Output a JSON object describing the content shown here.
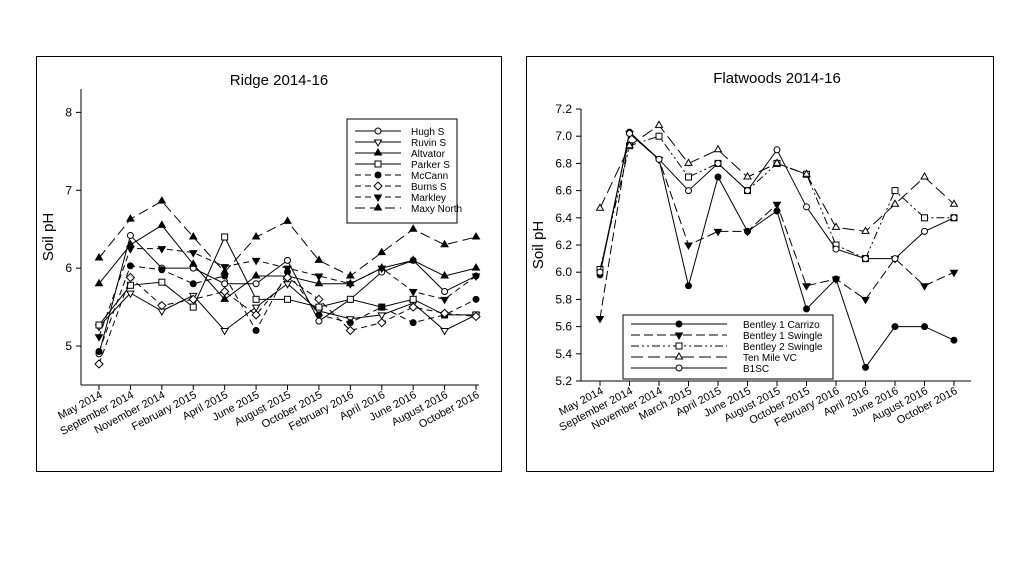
{
  "chart_data": [
    {
      "type": "line",
      "title": "Ridge 2014-16",
      "xlabel": "",
      "ylabel": "Soil pH",
      "ylim": [
        4.5,
        8.3
      ],
      "yticks": [
        5,
        6,
        7,
        8
      ],
      "grid": false,
      "legend_position": "top-right",
      "categories": [
        "May 2014",
        "September 2014",
        "November 2014",
        "February 2015",
        "April 2015",
        "June 2015",
        "August 2015",
        "October 2015",
        "February 2016",
        "April 2016",
        "June 2016",
        "August 2016",
        "October 2016"
      ],
      "series": [
        {
          "name": "Hugh S",
          "marker": "circle-open",
          "dash": "",
          "values": [
            4.9,
            6.42,
            6.0,
            6.0,
            5.8,
            5.8,
            6.1,
            5.32,
            5.6,
            5.95,
            6.1,
            5.7,
            5.9
          ]
        },
        {
          "name": "Ruvin S",
          "marker": "triangle-down-open",
          "dash": "",
          "values": [
            5.25,
            5.68,
            5.45,
            5.65,
            5.2,
            5.5,
            5.8,
            5.45,
            5.35,
            5.4,
            5.55,
            5.2,
            5.4
          ]
        },
        {
          "name": "Altvator",
          "marker": "triangle-up-filled",
          "dash": "",
          "values": [
            5.8,
            6.3,
            6.55,
            6.05,
            5.6,
            5.9,
            5.9,
            5.8,
            5.8,
            6.0,
            6.1,
            5.9,
            6.0
          ]
        },
        {
          "name": "Parker S",
          "marker": "square-open",
          "dash": "",
          "values": [
            5.27,
            5.78,
            5.82,
            5.5,
            6.4,
            5.6,
            5.6,
            5.5,
            5.6,
            5.5,
            5.6,
            5.4,
            5.4
          ]
        },
        {
          "name": "McCann",
          "marker": "circle-filled",
          "dash": "6,4",
          "values": [
            4.93,
            6.03,
            5.98,
            5.8,
            5.9,
            5.2,
            5.95,
            5.4,
            5.3,
            5.5,
            5.3,
            5.4,
            5.6
          ]
        },
        {
          "name": "Burns S",
          "marker": "diamond-open",
          "dash": "6,4",
          "values": [
            4.77,
            5.88,
            5.52,
            5.6,
            5.7,
            5.4,
            5.88,
            5.6,
            5.2,
            5.3,
            5.5,
            5.42,
            5.38
          ]
        },
        {
          "name": "Markley",
          "marker": "triangle-down-filled",
          "dash": "6,4",
          "values": [
            5.12,
            6.25,
            6.25,
            6.2,
            6.02,
            6.1,
            6.0,
            5.9,
            5.8,
            6.0,
            5.7,
            5.6,
            5.9
          ]
        },
        {
          "name": "Maxy North",
          "marker": "triangle-up-filled",
          "dash": "10,5",
          "values": [
            6.13,
            6.63,
            6.86,
            6.4,
            5.95,
            6.4,
            6.6,
            6.1,
            5.9,
            6.2,
            6.5,
            6.3,
            6.4
          ]
        }
      ]
    },
    {
      "type": "line",
      "title": "Flatwoods 2014-16",
      "xlabel": "",
      "ylabel": "Soil pH",
      "ylim": [
        5.2,
        7.2
      ],
      "yticks": [
        5.2,
        5.4,
        5.6,
        5.8,
        6.0,
        6.2,
        6.4,
        6.6,
        6.8,
        7.0,
        7.2
      ],
      "ytick_labels": [
        "5.2",
        "5.4",
        "5.6",
        "5.8",
        "6.0",
        "6.2",
        "6.4",
        "6.6",
        "6.8",
        "7.0",
        "7.2"
      ],
      "grid": false,
      "legend_position": "bottom-left",
      "categories": [
        "May 2014",
        "September 2014",
        "November 2014",
        "March 2015",
        "April 2015",
        "June 2015",
        "August 2015",
        "October 2015",
        "February 2016",
        "April 2016",
        "June 2016",
        "August 2016",
        "October 2016"
      ],
      "series": [
        {
          "name": "Bentley 1 Carrizo",
          "marker": "circle-filled",
          "dash": "",
          "values": [
            5.98,
            7.03,
            6.83,
            5.9,
            6.7,
            6.3,
            6.45,
            5.73,
            5.95,
            5.3,
            5.6,
            5.6,
            5.5
          ]
        },
        {
          "name": "Bentley 1 Swingle",
          "marker": "triangle-down-filled",
          "dash": "9,4",
          "values": [
            5.66,
            7.02,
            6.83,
            6.2,
            6.3,
            6.3,
            6.5,
            5.9,
            5.95,
            5.8,
            6.1,
            5.9,
            6.0
          ]
        },
        {
          "name": "Bentley 2 Swingle",
          "marker": "square-open",
          "dash": "8,3,2,3,2,3",
          "values": [
            6.02,
            6.93,
            7.0,
            6.7,
            6.8,
            6.6,
            6.8,
            6.72,
            6.2,
            6.1,
            6.6,
            6.4,
            6.4
          ]
        },
        {
          "name": "Ten Mile VC",
          "marker": "triangle-up-open",
          "dash": "12,5",
          "values": [
            6.47,
            6.93,
            7.08,
            6.8,
            6.9,
            6.7,
            6.8,
            6.72,
            6.33,
            6.3,
            6.5,
            6.7,
            6.5
          ]
        },
        {
          "name": "B1SC",
          "marker": "circle-open",
          "dash": "",
          "values": [
            6.0,
            7.02,
            6.83,
            6.6,
            6.8,
            6.6,
            6.9,
            6.48,
            6.17,
            6.1,
            6.1,
            6.3,
            6.4
          ]
        }
      ]
    }
  ]
}
